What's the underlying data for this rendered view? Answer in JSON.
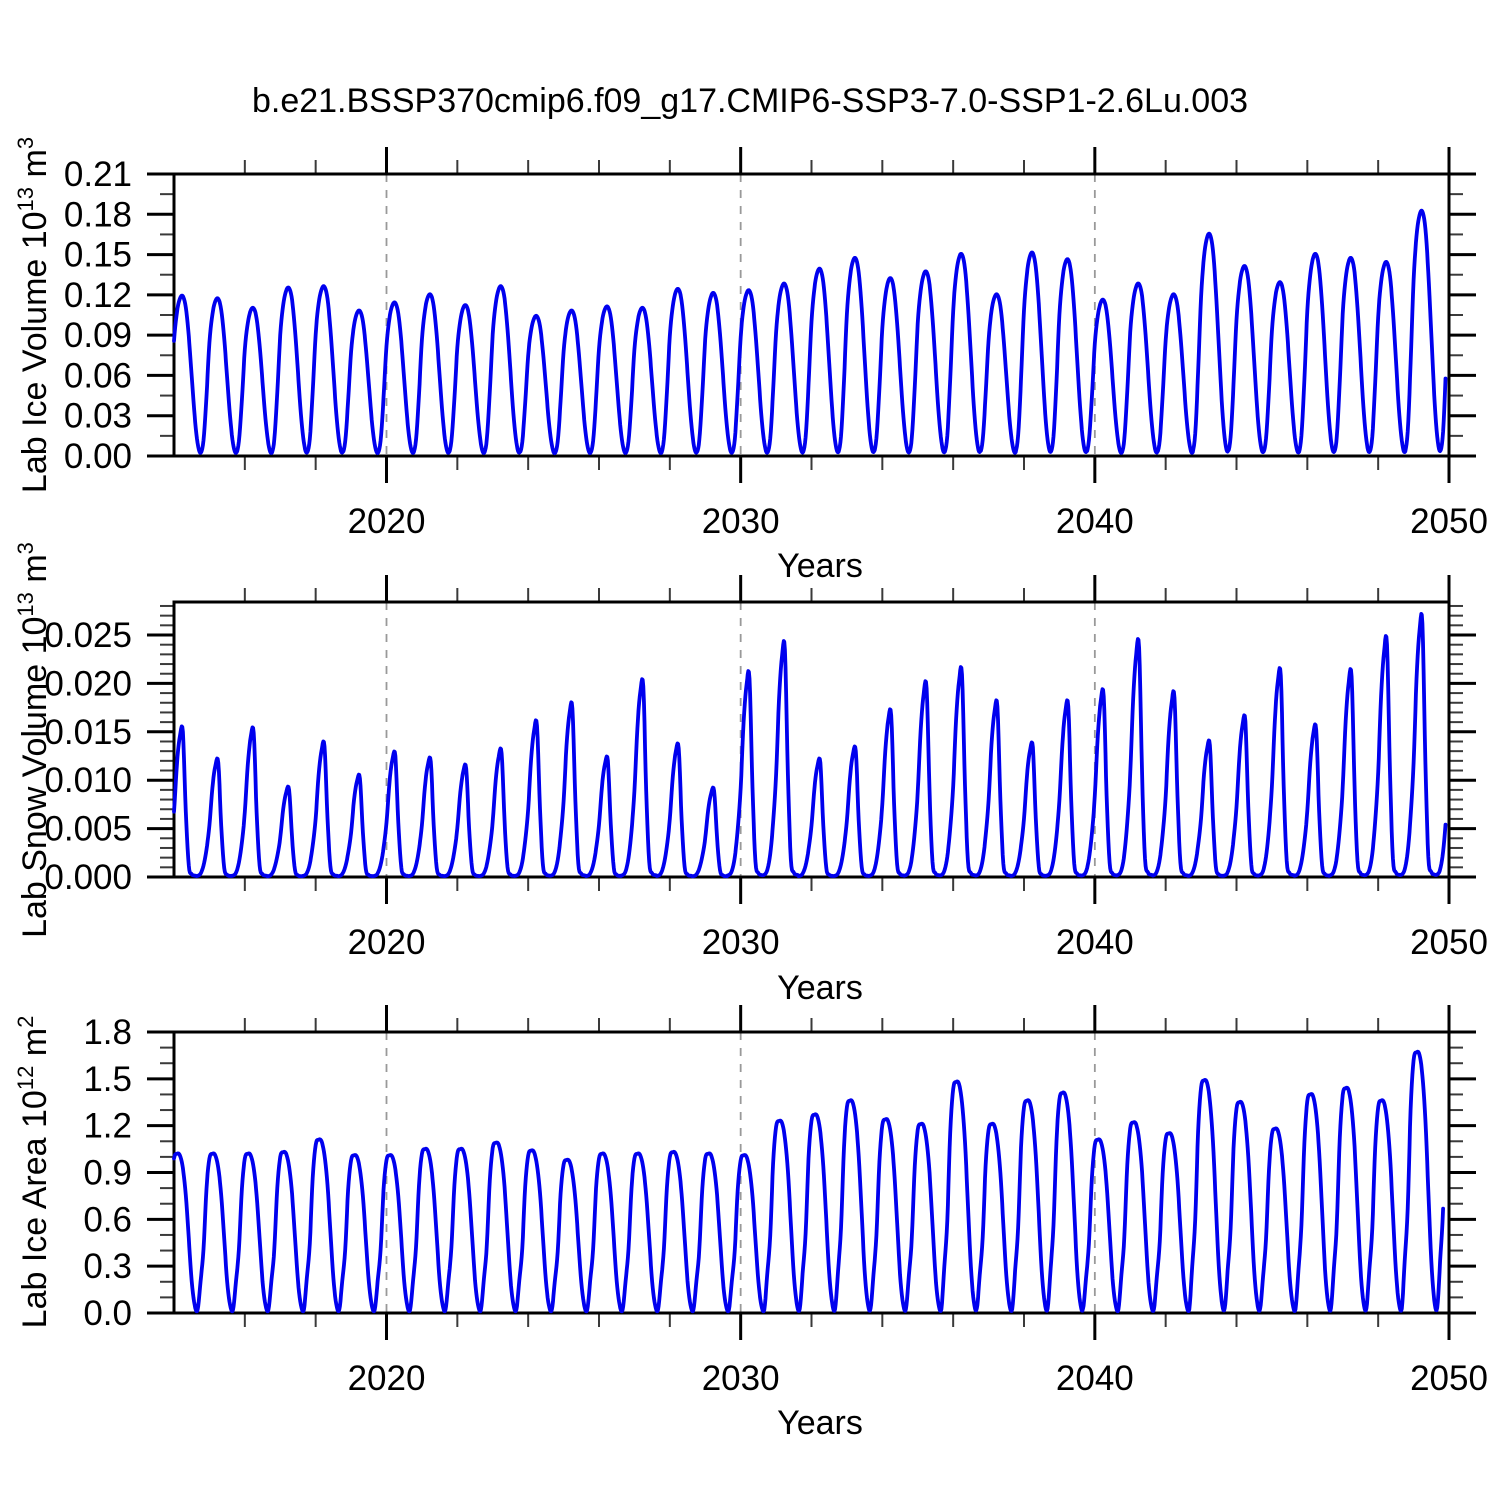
{
  "title": "b.e21.BSSP370cmip6.f09_g17.CMIP6-SSP3-7.0-SSP1-2.6Lu.003",
  "colors": {
    "line": "#0000EE",
    "frame": "#000000",
    "major_tick": "#000000",
    "minor_tick": "#3a3a3a",
    "gridline": "#999999",
    "text": "#000000",
    "background": "#FFFFFF"
  },
  "chart_data": [
    {
      "id": "lab-ice-volume",
      "type": "line",
      "ylabel_parts": [
        {
          "t": "Lab Ice Volume 10"
        },
        {
          "t": "13",
          "sup": true
        },
        {
          "t": " m"
        },
        {
          "t": "3",
          "sup": true
        }
      ],
      "xlabel": "Years",
      "xlim": [
        2014,
        2050
      ],
      "ylim": [
        0,
        0.21
      ],
      "x_major_ticks": [
        2020,
        2030,
        2040,
        2050
      ],
      "x_tick_labels": [
        "2020",
        "2030",
        "2040",
        "2050"
      ],
      "x_minor_step": 2,
      "x_gridlines": [
        2020,
        2030,
        2040
      ],
      "y_major_ticks": [
        0.0,
        0.03,
        0.06,
        0.09,
        0.12,
        0.15,
        0.18,
        0.21
      ],
      "y_tick_labels": [
        "0.00",
        "0.03",
        "0.06",
        "0.09",
        "0.12",
        "0.15",
        "0.18",
        "0.21"
      ],
      "y_minor_step": 0.015,
      "grid_on": "x-dashed",
      "legend": "none",
      "years": [
        2014,
        2015,
        2016,
        2017,
        2018,
        2019,
        2020,
        2021,
        2022,
        2023,
        2024,
        2025,
        2026,
        2027,
        2028,
        2029,
        2030,
        2031,
        2032,
        2033,
        2034,
        2035,
        2036,
        2037,
        2038,
        2039,
        2040,
        2041,
        2042,
        2043,
        2044,
        2045,
        2046,
        2047,
        2048,
        2049
      ],
      "annual_peak_values": [
        0.119,
        0.117,
        0.11,
        0.125,
        0.126,
        0.108,
        0.114,
        0.12,
        0.112,
        0.126,
        0.104,
        0.108,
        0.111,
        0.11,
        0.124,
        0.121,
        0.123,
        0.128,
        0.139,
        0.147,
        0.132,
        0.137,
        0.15,
        0.12,
        0.151,
        0.146,
        0.116,
        0.128,
        0.12,
        0.165,
        0.141,
        0.129,
        0.15,
        0.147,
        0.144,
        0.182
      ],
      "seasonal_shape": [
        0.72,
        0.9,
        0.985,
        1.0,
        0.93,
        0.75,
        0.5,
        0.25,
        0.08,
        0.02,
        0.1,
        0.38
      ],
      "season_switch": 0.78,
      "t_end": 2049.9
    },
    {
      "id": "lab-snow-volume",
      "type": "line",
      "ylabel_parts": [
        {
          "t": "Lab Snow Volume 10"
        },
        {
          "t": "13",
          "sup": true
        },
        {
          "t": " m"
        },
        {
          "t": "3",
          "sup": true
        }
      ],
      "xlabel": "Years",
      "xlim": [
        2014,
        2050
      ],
      "ylim": [
        0,
        0.02841
      ],
      "x_major_ticks": [
        2020,
        2030,
        2040,
        2050
      ],
      "x_tick_labels": [
        "2020",
        "2030",
        "2040",
        "2050"
      ],
      "x_minor_step": 2,
      "x_gridlines": [
        2020,
        2030,
        2040
      ],
      "y_major_ticks": [
        0.0,
        0.005,
        0.01,
        0.015,
        0.02,
        0.025
      ],
      "y_tick_labels": [
        "0.000",
        "0.005",
        "0.010",
        "0.015",
        "0.020",
        "0.025"
      ],
      "y_minor_step": 0.001,
      "grid_on": "x-dashed",
      "legend": "none",
      "years": [
        2014,
        2015,
        2016,
        2017,
        2018,
        2019,
        2020,
        2021,
        2022,
        2023,
        2024,
        2025,
        2026,
        2027,
        2028,
        2029,
        2030,
        2031,
        2032,
        2033,
        2034,
        2035,
        2036,
        2037,
        2038,
        2039,
        2040,
        2041,
        2042,
        2043,
        2044,
        2045,
        2046,
        2047,
        2048,
        2049
      ],
      "annual_peak_values": [
        0.015,
        0.0118,
        0.0149,
        0.009,
        0.0135,
        0.0102,
        0.0125,
        0.0119,
        0.0112,
        0.0128,
        0.0156,
        0.0174,
        0.012,
        0.0197,
        0.0133,
        0.0089,
        0.0205,
        0.0235,
        0.0118,
        0.013,
        0.0167,
        0.0195,
        0.0209,
        0.0176,
        0.0134,
        0.0176,
        0.0187,
        0.0237,
        0.0185,
        0.0136,
        0.0161,
        0.0208,
        0.0152,
        0.0207,
        0.024,
        0.0262
      ],
      "seasonal_shape": [
        0.45,
        0.78,
        0.97,
        1.0,
        0.45,
        0.08,
        0.02,
        0.01,
        0.01,
        0.03,
        0.1,
        0.24
      ],
      "season_switch": 0.62,
      "t_end": 2049.9
    },
    {
      "id": "lab-ice-area",
      "type": "line",
      "ylabel_parts": [
        {
          "t": "Lab Ice Area 10"
        },
        {
          "t": "12",
          "sup": true
        },
        {
          "t": " m"
        },
        {
          "t": "2",
          "sup": true
        }
      ],
      "xlabel": "Years",
      "xlim": [
        2014,
        2050
      ],
      "ylim": [
        0,
        1.8
      ],
      "x_major_ticks": [
        2020,
        2030,
        2040,
        2050
      ],
      "x_tick_labels": [
        "2020",
        "2030",
        "2040",
        "2050"
      ],
      "x_minor_step": 2,
      "x_gridlines": [
        2020,
        2030,
        2040
      ],
      "y_major_ticks": [
        0.0,
        0.3,
        0.6,
        0.9,
        1.2,
        1.5,
        1.8
      ],
      "y_tick_labels": [
        "0.0",
        "0.3",
        "0.6",
        "0.9",
        "1.2",
        "1.5",
        "1.8"
      ],
      "y_minor_step": 0.1,
      "grid_on": "x-dashed",
      "legend": "none",
      "years": [
        2014,
        2015,
        2016,
        2017,
        2018,
        2019,
        2020,
        2021,
        2022,
        2023,
        2024,
        2025,
        2026,
        2027,
        2028,
        2029,
        2030,
        2031,
        2032,
        2033,
        2034,
        2035,
        2036,
        2037,
        2038,
        2039,
        2040,
        2041,
        2042,
        2043,
        2044,
        2045,
        2046,
        2047,
        2048,
        2049
      ],
      "annual_peak_values": [
        1.02,
        1.02,
        1.02,
        1.03,
        1.11,
        1.01,
        1.01,
        1.05,
        1.05,
        1.09,
        1.04,
        0.98,
        1.02,
        1.02,
        1.03,
        1.02,
        1.01,
        1.23,
        1.27,
        1.36,
        1.24,
        1.21,
        1.48,
        1.21,
        1.36,
        1.41,
        1.11,
        1.22,
        1.15,
        1.49,
        1.35,
        1.18,
        1.4,
        1.44,
        1.36,
        1.67
      ],
      "seasonal_shape": [
        0.97,
        1.0,
        0.99,
        0.91,
        0.74,
        0.47,
        0.2,
        0.05,
        0.02,
        0.2,
        0.4,
        0.78
      ],
      "season_switch": 0.68,
      "t_end": 2049.84
    }
  ]
}
